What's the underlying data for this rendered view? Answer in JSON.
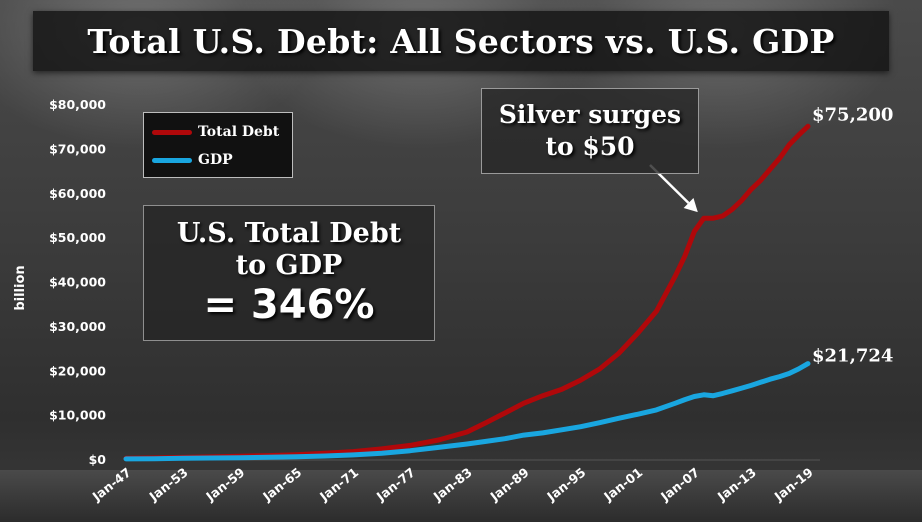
{
  "chart_data": {
    "type": "line",
    "title": "Total U.S. Debt: All Sectors vs. U.S. GDP",
    "ylabel": "billion",
    "xlabel": "",
    "ylim": [
      0,
      80000
    ],
    "y_ticks": [
      0,
      10000,
      20000,
      30000,
      40000,
      50000,
      60000,
      70000,
      80000
    ],
    "y_tick_labels": [
      "$0",
      "$10,000",
      "$20,000",
      "$30,000",
      "$40,000",
      "$50,000",
      "$60,000",
      "$70,000",
      "$80,000"
    ],
    "x_tick_labels": [
      "Jan-47",
      "Jan-53",
      "Jan-59",
      "Jan-65",
      "Jan-71",
      "Jan-77",
      "Jan-83",
      "Jan-89",
      "Jan-95",
      "Jan-01",
      "Jan-07",
      "Jan-13",
      "Jan-19"
    ],
    "x_ticks": [
      1947,
      1953,
      1959,
      1965,
      1971,
      1977,
      1983,
      1989,
      1995,
      2001,
      2007,
      2013,
      2019
    ],
    "xlim": [
      1947,
      2019
    ],
    "legend": "top-left",
    "series": [
      {
        "name": "Total Debt",
        "color": "#b0080a",
        "x": [
          1947,
          1950,
          1953,
          1956,
          1959,
          1962,
          1965,
          1968,
          1971,
          1974,
          1977,
          1980,
          1983,
          1985,
          1987,
          1989,
          1991,
          1993,
          1995,
          1997,
          1999,
          2001,
          2003,
          2005,
          2006,
          2007,
          2008,
          2009,
          2010,
          2011,
          2012,
          2013,
          2014,
          2015,
          2016,
          2017,
          2018,
          2019
        ],
        "values": [
          400,
          480,
          580,
          700,
          850,
          1000,
          1200,
          1500,
          1900,
          2500,
          3300,
          4500,
          6300,
          8400,
          10600,
          12800,
          14500,
          15900,
          18000,
          20500,
          24000,
          28500,
          33500,
          41500,
          46000,
          51500,
          54500,
          54500,
          55000,
          56500,
          58500,
          61000,
          63000,
          65500,
          68000,
          71000,
          73200,
          75200
        ],
        "end_label": "$75,200"
      },
      {
        "name": "GDP",
        "color": "#19a6e0",
        "x": [
          1947,
          1950,
          1953,
          1956,
          1959,
          1962,
          1965,
          1968,
          1971,
          1974,
          1977,
          1980,
          1983,
          1985,
          1987,
          1989,
          1991,
          1993,
          1995,
          1997,
          1999,
          2001,
          2003,
          2005,
          2006,
          2007,
          2008,
          2009,
          2010,
          2011,
          2012,
          2013,
          2014,
          2015,
          2016,
          2017,
          2018,
          2019
        ],
        "values": [
          250,
          300,
          380,
          440,
          520,
          600,
          730,
          900,
          1150,
          1500,
          2100,
          2850,
          3600,
          4200,
          4800,
          5600,
          6100,
          6800,
          7500,
          8400,
          9400,
          10300,
          11300,
          12800,
          13600,
          14300,
          14700,
          14500,
          15000,
          15600,
          16200,
          16800,
          17500,
          18200,
          18800,
          19500,
          20500,
          21724
        ],
        "end_label": "$21,724"
      }
    ],
    "annotations": [
      {
        "text_lines": [
          "U.S. Total Debt",
          "to GDP",
          "= 346%"
        ]
      },
      {
        "text_lines": [
          "Silver surges",
          "to $50"
        ],
        "arrow_to": {
          "x": 2008,
          "y": 54500
        }
      }
    ]
  }
}
